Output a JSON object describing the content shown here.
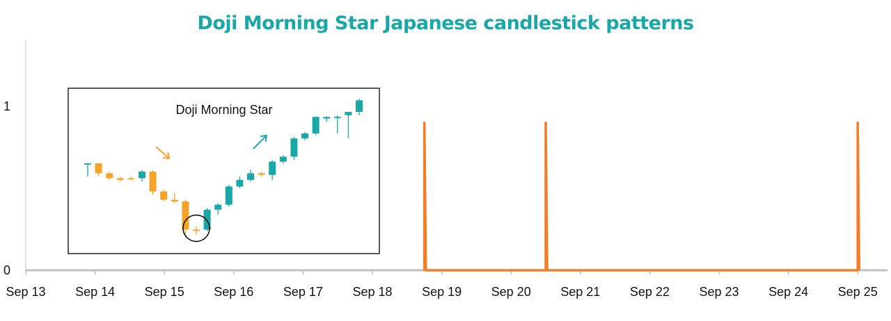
{
  "chart_data": {
    "type": "line",
    "title": "Doji Morning Star Japanese candlestick patterns",
    "xlabel": "",
    "ylabel": "",
    "x_ticks": [
      "Sep 13",
      "Sep 14",
      "Sep 15",
      "Sep 16",
      "Sep 17",
      "Sep 18",
      "Sep 19",
      "Sep 20",
      "Sep 21",
      "Sep 22",
      "Sep 23",
      "Sep 24",
      "Sep 25"
    ],
    "y_ticks": [
      "0",
      "1"
    ],
    "ylim": [
      0,
      1.4
    ],
    "grid": false,
    "legend": "none",
    "series": [
      {
        "color": "#f07f2a",
        "points": [
          {
            "x": "Sep 18 18:00",
            "y": 0
          },
          {
            "x": "Sep 18 18:00",
            "y": 0.9
          },
          {
            "x": "Sep 18 18:30",
            "y": 0
          },
          {
            "x": "Sep 20 12:00",
            "y": 0
          },
          {
            "x": "Sep 20 12:00",
            "y": 0.9
          },
          {
            "x": "Sep 20 12:30",
            "y": 0
          },
          {
            "x": "Sep 25 00:00",
            "y": 0
          },
          {
            "x": "Sep 25 00:00",
            "y": 0.9
          },
          {
            "x": "Sep 25 00:30",
            "y": 0
          }
        ]
      }
    ],
    "inset": {
      "title": "Doji Morning Star",
      "colors": {
        "bearish": "#f6a32a",
        "bullish": "#1aa7a7",
        "marker": "#000000"
      },
      "candles": [
        {
          "o": 0.7,
          "h": 0.7,
          "l": 0.62,
          "c": 0.7,
          "color": "bullish"
        },
        {
          "o": 0.7,
          "h": 0.7,
          "l": 0.62,
          "c": 0.64,
          "color": "bearish"
        },
        {
          "o": 0.64,
          "h": 0.65,
          "l": 0.6,
          "c": 0.61,
          "color": "bearish"
        },
        {
          "o": 0.61,
          "h": 0.62,
          "l": 0.59,
          "c": 0.6,
          "color": "bearish"
        },
        {
          "o": 0.61,
          "h": 0.62,
          "l": 0.6,
          "c": 0.61,
          "color": "bearish"
        },
        {
          "o": 0.61,
          "h": 0.66,
          "l": 0.59,
          "c": 0.65,
          "color": "bullish"
        },
        {
          "o": 0.65,
          "h": 0.66,
          "l": 0.51,
          "c": 0.53,
          "color": "bearish"
        },
        {
          "o": 0.53,
          "h": 0.54,
          "l": 0.47,
          "c": 0.48,
          "color": "bearish"
        },
        {
          "o": 0.48,
          "h": 0.52,
          "l": 0.46,
          "c": 0.47,
          "color": "bearish"
        },
        {
          "o": 0.47,
          "h": 0.48,
          "l": 0.27,
          "c": 0.3,
          "color": "bearish"
        },
        {
          "o": 0.3,
          "h": 0.32,
          "l": 0.27,
          "c": 0.3,
          "color": "bearish"
        },
        {
          "o": 0.3,
          "h": 0.43,
          "l": 0.29,
          "c": 0.42,
          "color": "bullish"
        },
        {
          "o": 0.42,
          "h": 0.46,
          "l": 0.39,
          "c": 0.45,
          "color": "bullish"
        },
        {
          "o": 0.45,
          "h": 0.57,
          "l": 0.44,
          "c": 0.56,
          "color": "bullish"
        },
        {
          "o": 0.56,
          "h": 0.62,
          "l": 0.55,
          "c": 0.6,
          "color": "bullish"
        },
        {
          "o": 0.6,
          "h": 0.66,
          "l": 0.59,
          "c": 0.64,
          "color": "bullish"
        },
        {
          "o": 0.64,
          "h": 0.65,
          "l": 0.62,
          "c": 0.63,
          "color": "bearish"
        },
        {
          "o": 0.63,
          "h": 0.72,
          "l": 0.6,
          "c": 0.71,
          "color": "bullish"
        },
        {
          "o": 0.71,
          "h": 0.75,
          "l": 0.7,
          "c": 0.74,
          "color": "bullish"
        },
        {
          "o": 0.74,
          "h": 0.86,
          "l": 0.72,
          "c": 0.85,
          "color": "bullish"
        },
        {
          "o": 0.85,
          "h": 0.89,
          "l": 0.84,
          "c": 0.88,
          "color": "bullish"
        },
        {
          "o": 0.88,
          "h": 0.98,
          "l": 0.87,
          "c": 0.98,
          "color": "bullish"
        },
        {
          "o": 0.97,
          "h": 0.98,
          "l": 0.95,
          "c": 0.98,
          "color": "bullish"
        },
        {
          "o": 0.98,
          "h": 0.99,
          "l": 0.88,
          "c": 0.98,
          "color": "bullish"
        },
        {
          "o": 0.99,
          "h": 1.01,
          "l": 0.85,
          "c": 1.01,
          "color": "bullish"
        },
        {
          "o": 1.01,
          "h": 1.09,
          "l": 0.99,
          "c": 1.08,
          "color": "bullish"
        }
      ],
      "doji_index": 10,
      "arrows": [
        {
          "direction": "down",
          "color": "bearish"
        },
        {
          "direction": "up",
          "color": "bullish"
        }
      ]
    }
  }
}
